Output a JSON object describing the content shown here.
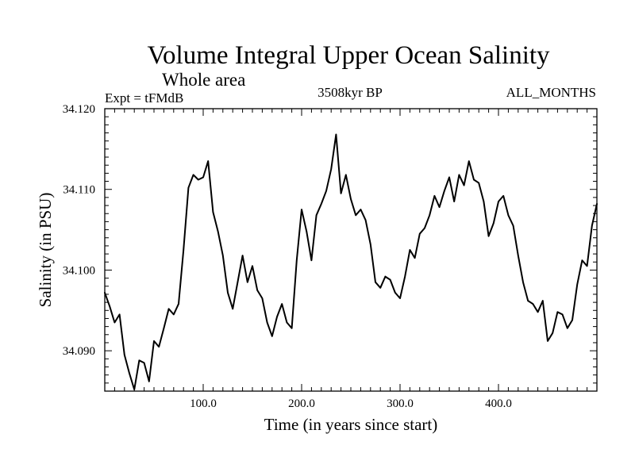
{
  "chart_data": {
    "type": "line",
    "title": "Volume Integral Upper Ocean Salinity",
    "subtitle": "Whole area",
    "experiment_label": "Expt = tFMdB",
    "period_label": "3508kyr BP",
    "months_label": "ALL_MONTHS",
    "xlabel": "Time (in years since start)",
    "ylabel": "Salinity (in PSU)",
    "xlim": [
      0,
      500
    ],
    "ylim": [
      34.085,
      34.12
    ],
    "x_ticks": [
      100,
      200,
      300,
      400
    ],
    "x_tick_labels": [
      "100.0",
      "200.0",
      "300.0",
      "400.0"
    ],
    "y_ticks": [
      34.09,
      34.1,
      34.11,
      34.12
    ],
    "y_tick_labels": [
      "34.090",
      "34.100",
      "34.110",
      "34.120"
    ],
    "grid": false,
    "series": [
      {
        "name": "Salinity",
        "x": [
          0,
          5,
          10,
          15,
          20,
          25,
          30,
          35,
          40,
          45,
          50,
          55,
          60,
          65,
          70,
          75,
          80,
          85,
          90,
          95,
          100,
          105,
          110,
          115,
          120,
          125,
          130,
          135,
          140,
          145,
          150,
          155,
          160,
          165,
          170,
          175,
          180,
          185,
          190,
          195,
          200,
          205,
          210,
          215,
          220,
          225,
          230,
          235,
          240,
          245,
          250,
          255,
          260,
          265,
          270,
          275,
          280,
          285,
          290,
          295,
          300,
          305,
          310,
          315,
          320,
          325,
          330,
          335,
          340,
          345,
          350,
          355,
          360,
          365,
          370,
          375,
          380,
          385,
          390,
          395,
          400,
          405,
          410,
          415,
          420,
          425,
          430,
          435,
          440,
          445,
          450,
          455,
          460,
          465,
          470,
          475,
          480,
          485,
          490,
          495,
          500
        ],
        "values": [
          34.0972,
          34.0955,
          34.0935,
          34.0945,
          34.0895,
          34.0872,
          34.0852,
          34.0888,
          34.0885,
          34.0862,
          34.0912,
          34.0905,
          34.0928,
          34.0952,
          34.0945,
          34.0958,
          34.1025,
          34.1102,
          34.1118,
          34.1112,
          34.1115,
          34.1135,
          34.1072,
          34.1048,
          34.1018,
          34.0972,
          34.0952,
          34.0985,
          34.1018,
          34.0985,
          34.1005,
          34.0975,
          34.0965,
          34.0935,
          34.0918,
          34.0942,
          34.0958,
          34.0935,
          34.0928,
          34.1012,
          34.1075,
          34.1048,
          34.1012,
          34.1068,
          34.1082,
          34.1098,
          34.1125,
          34.1168,
          34.1095,
          34.1118,
          34.1088,
          34.1068,
          34.1075,
          34.1062,
          34.1032,
          34.0985,
          34.0978,
          34.0992,
          34.0988,
          34.0972,
          34.0965,
          34.0992,
          34.1025,
          34.1015,
          34.1045,
          34.1052,
          34.1068,
          34.1092,
          34.1078,
          34.1098,
          34.1115,
          34.1085,
          34.1118,
          34.1105,
          34.1135,
          34.1112,
          34.1108,
          34.1085,
          34.1042,
          34.1058,
          34.1085,
          34.1092,
          34.1068,
          34.1055,
          34.1018,
          34.0985,
          34.0962,
          34.0958,
          34.0948,
          34.0962,
          34.0912,
          34.0922,
          34.0948,
          34.0945,
          34.0928,
          34.0938,
          34.0982,
          34.1012,
          34.1005,
          34.1055,
          34.1082
        ]
      }
    ]
  }
}
